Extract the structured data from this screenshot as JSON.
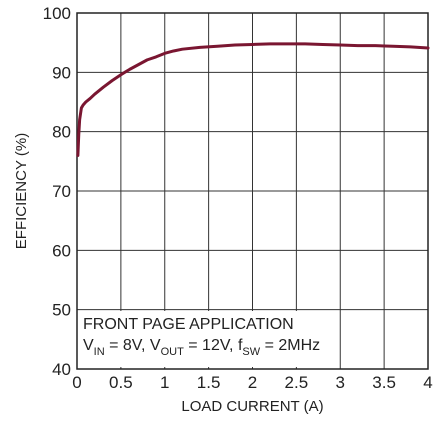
{
  "chart_data": {
    "type": "line",
    "xlabel": "LOAD CURRENT (A)",
    "ylabel": "EFFICIENCY (%)",
    "xlim": [
      0,
      4
    ],
    "ylim": [
      40,
      100
    ],
    "x_ticks": [
      "0",
      "0.5",
      "1",
      "1.5",
      "2",
      "2.5",
      "3",
      "3.5",
      "4"
    ],
    "y_ticks": [
      "40",
      "50",
      "60",
      "70",
      "80",
      "90",
      "100"
    ],
    "grid": true,
    "series_color": "#7a1631",
    "series": [
      {
        "x": [
          0.01,
          0.02,
          0.03,
          0.05,
          0.07,
          0.1,
          0.15,
          0.2,
          0.3,
          0.4,
          0.5,
          0.6,
          0.7,
          0.8,
          0.9,
          1.0,
          1.1,
          1.2,
          1.4,
          1.6,
          1.8,
          2.0,
          2.2,
          2.4,
          2.6,
          2.8,
          3.0,
          3.2,
          3.4,
          3.6,
          3.8,
          4.0
        ],
        "y": [
          76,
          79.5,
          82,
          84,
          84.5,
          85,
          85.6,
          86.3,
          87.5,
          88.6,
          89.6,
          90.5,
          91.3,
          92.1,
          92.6,
          93.2,
          93.6,
          93.9,
          94.2,
          94.4,
          94.6,
          94.7,
          94.8,
          94.8,
          94.8,
          94.7,
          94.6,
          94.5,
          94.5,
          94.4,
          94.3,
          94.1
        ]
      }
    ]
  },
  "annotation": {
    "line1": "FRONT PAGE APPLICATION",
    "vin_label": "V",
    "vin_sub": "IN",
    "vin_value": " = 8V, ",
    "vout_label": "V",
    "vout_sub": "OUT",
    "vout_value": " = 12V, ",
    "fsw_label": "f",
    "fsw_sub": "SW",
    "fsw_value": " = 2MHz"
  }
}
